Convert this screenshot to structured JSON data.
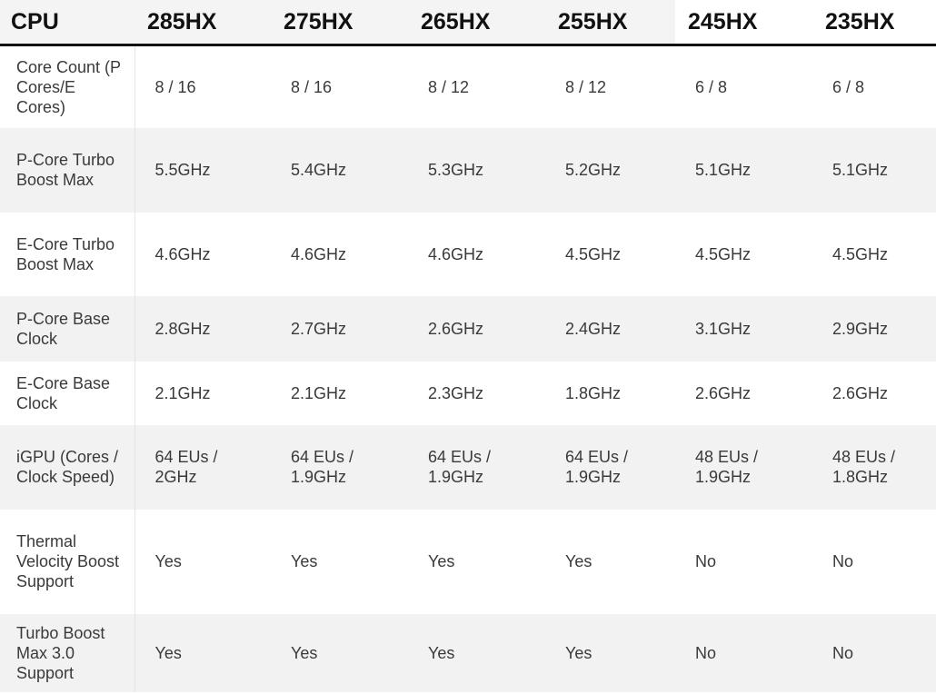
{
  "table": {
    "header": [
      "CPU",
      "285HX",
      "275HX",
      "265HX",
      "255HX",
      "245HX",
      "235HX"
    ],
    "rows": [
      [
        "Core Count (P Cores/E Cores)",
        "8 / 16",
        "8 / 16",
        "8 / 12",
        "8 / 12",
        "6 / 8",
        "6 / 8"
      ],
      [
        "P-Core Turbo Boost Max",
        "5.5GHz",
        "5.4GHz",
        "5.3GHz",
        "5.2GHz",
        "5.1GHz",
        "5.1GHz"
      ],
      [
        "E-Core Turbo Boost Max",
        "4.6GHz",
        "4.6GHz",
        "4.6GHz",
        "4.5GHz",
        "4.5GHz",
        "4.5GHz"
      ],
      [
        "P-Core Base Clock",
        "2.8GHz",
        "2.7GHz",
        "2.6GHz",
        "2.4GHz",
        "3.1GHz",
        "2.9GHz"
      ],
      [
        "E-Core Base Clock",
        "2.1GHz",
        "2.1GHz",
        "2.3GHz",
        "1.8GHz",
        "2.6GHz",
        "2.6GHz"
      ],
      [
        "iGPU (Cores / Clock Speed)",
        "64 EUs / 2GHz",
        "64 EUs / 1.9GHz",
        "64 EUs / 1.9GHz",
        "64 EUs / 1.9GHz",
        "48 EUs / 1.9GHz",
        "48 EUs / 1.8GHz"
      ],
      [
        "Thermal Velocity Boost Support",
        "Yes",
        "Yes",
        "Yes",
        "Yes",
        "No",
        "No"
      ],
      [
        "Turbo Boost Max 3.0 Support",
        "Yes",
        "Yes",
        "Yes",
        "Yes",
        "No",
        "No"
      ]
    ]
  }
}
